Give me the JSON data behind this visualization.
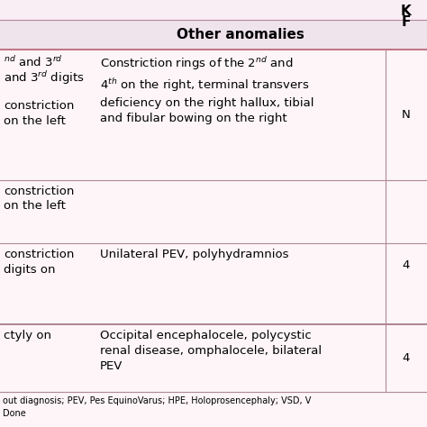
{
  "background_color": "#fdf5f8",
  "header_bg": "#f0e4ec",
  "border_color": "#b08898",
  "header_bold_line_color": "#c07888",
  "header_text_color": "#000000",
  "body_text_color": "#000000",
  "col2_header": "Other anomalies",
  "col3_header_line1": "K",
  "col3_header_line2": "F",
  "row0_col1_top": "nd and 3rd",
  "row0_col1_mid": "and 3rd digits",
  "row0_col1_bot": "constriction\non the left",
  "row0_col2": "Constriction rings of the 2nd and\n4th on the right, terminal transvers\ndeficiency on the right hallux, tibial\nand fibular bowing on the right",
  "row0_col3": "N",
  "row1_col1": "constriction\non the left",
  "row1_col2": "",
  "row1_col3": "",
  "row2_col1": "constriction\ndigits on",
  "row2_col2": "Unilateral PEV, polyhydramnios",
  "row2_col3": "4",
  "row3_col1": "ctyly on",
  "row3_col2": "Occipital encephalocele, polycystic\nrenal disease, omphalocele, bilateral\nPEV",
  "row3_col3": "4",
  "footer_line1": "out diagnosis; PEV, Pes EquinoVarus; HPE, Holoprosencephaly; VSD, V",
  "footer_line2": "Done",
  "figsize": [
    4.74,
    4.74
  ],
  "dpi": 100
}
